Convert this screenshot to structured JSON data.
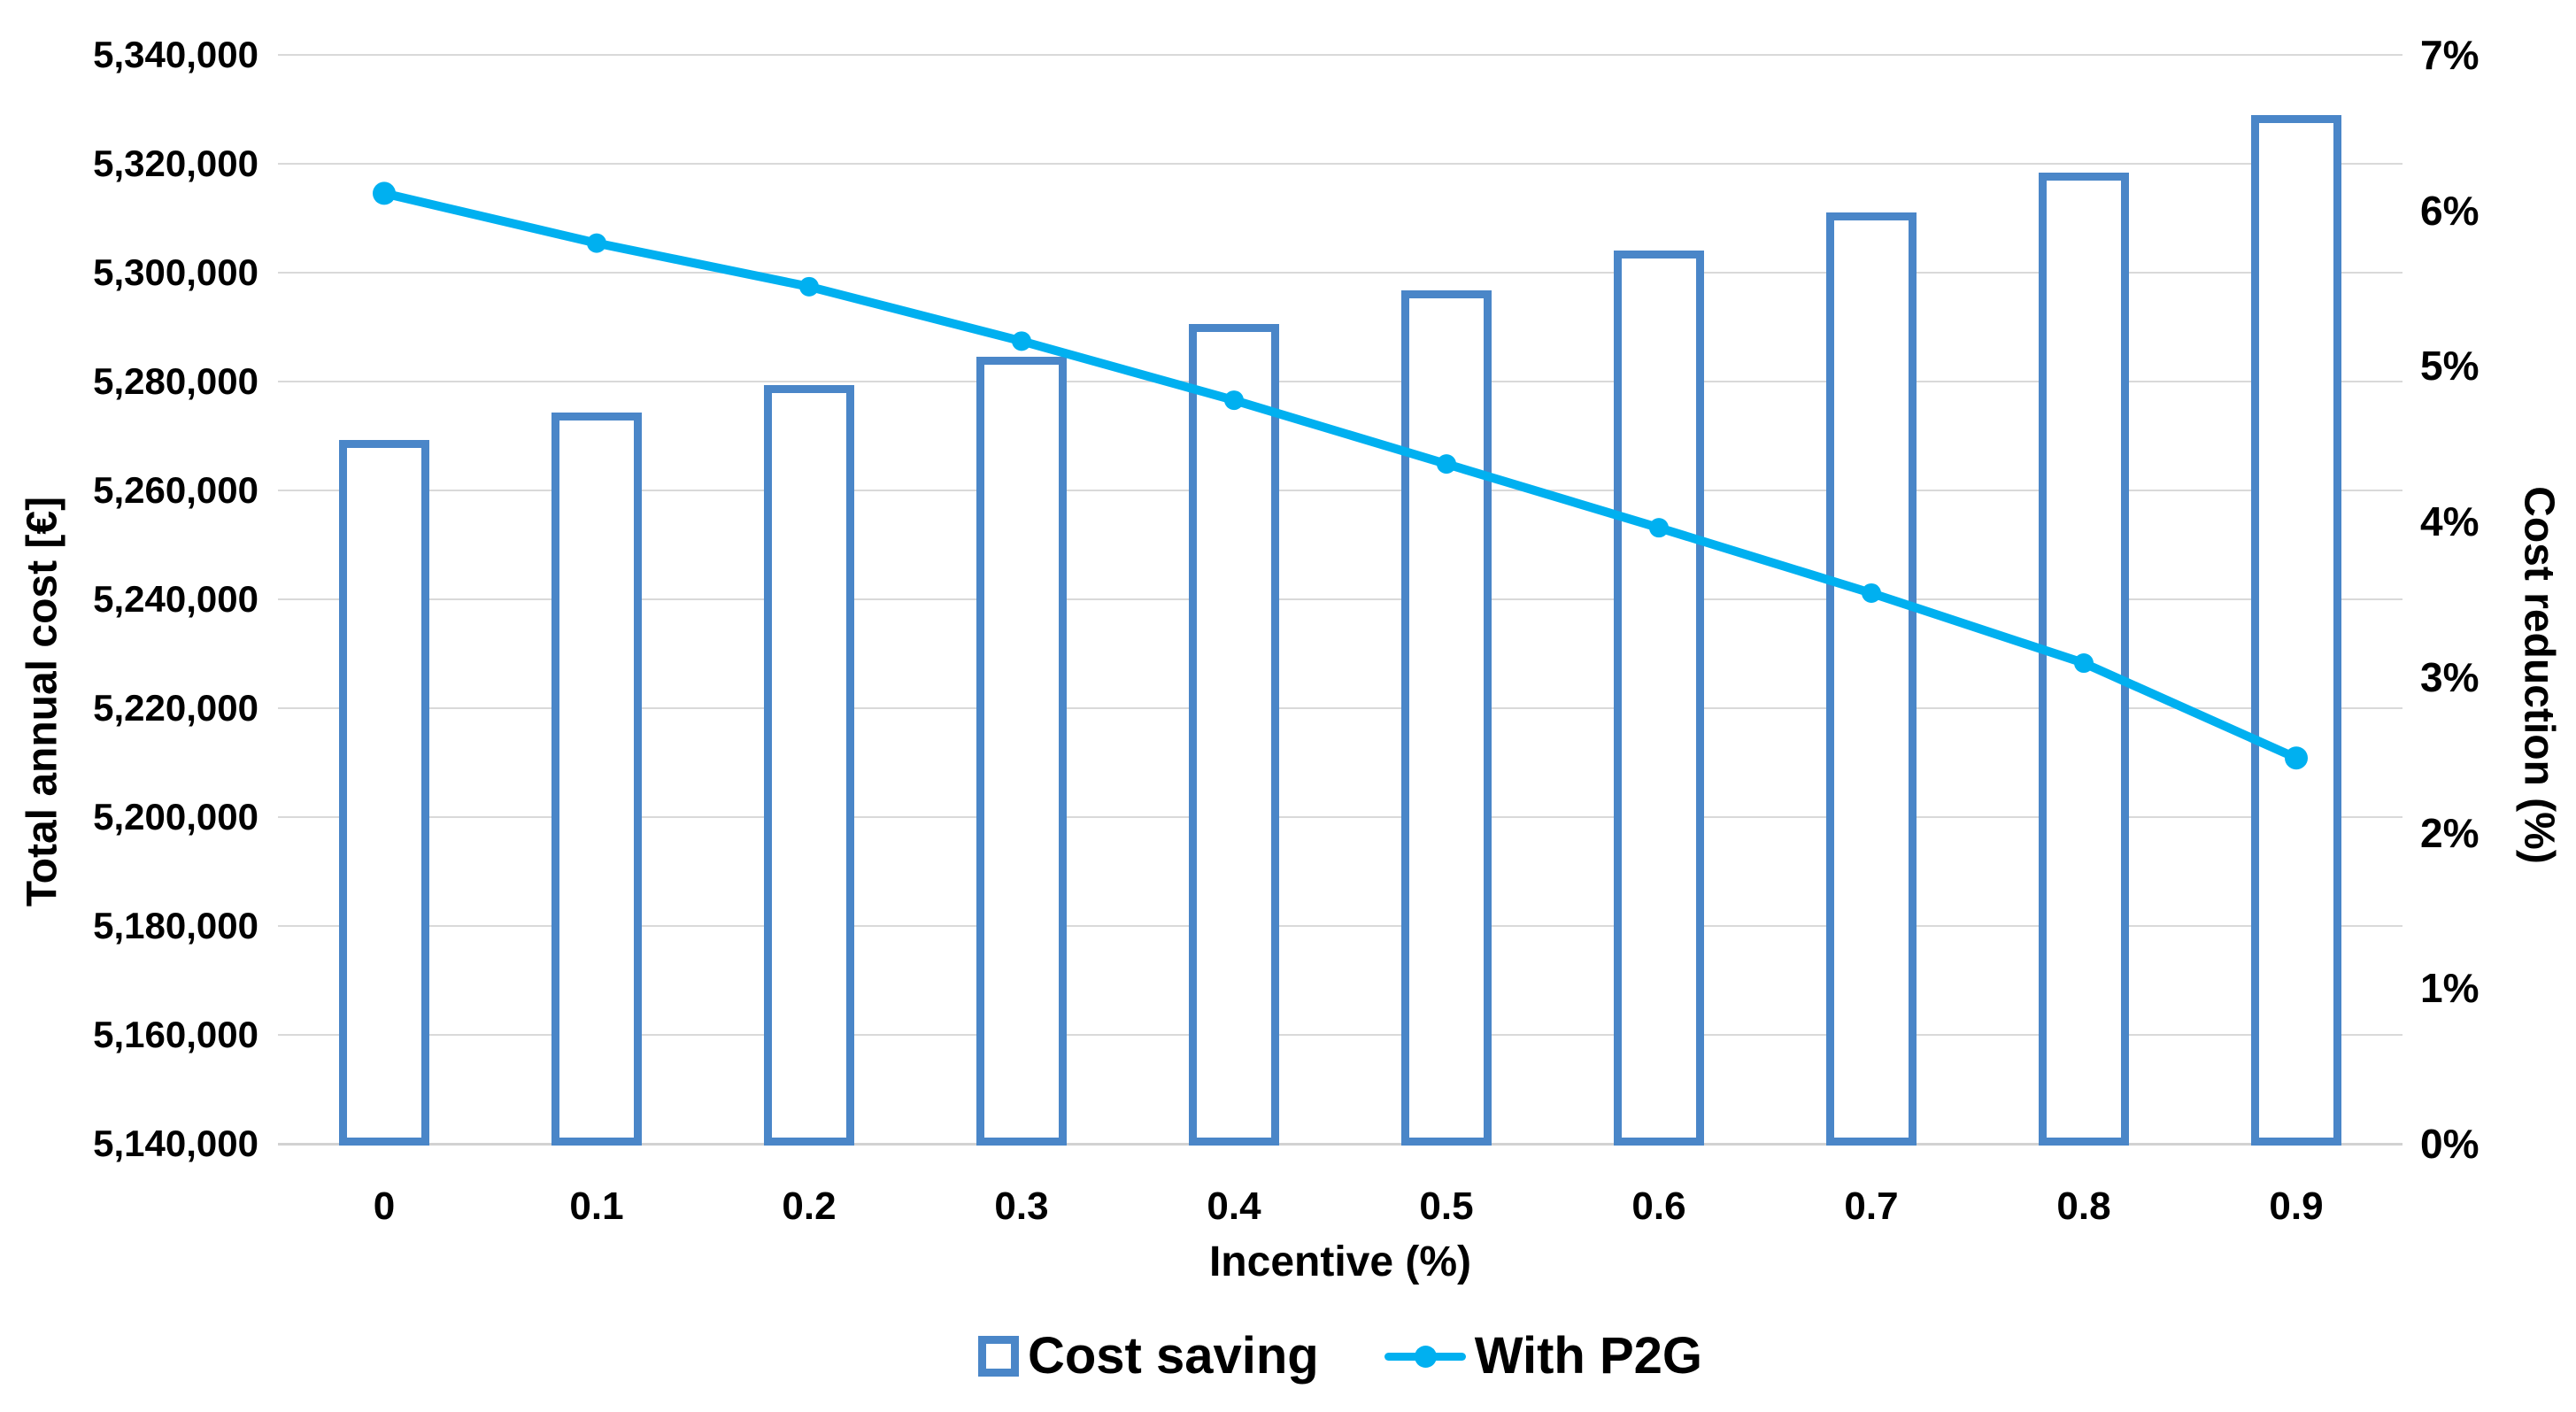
{
  "chart_data": {
    "type": "combo",
    "categories": [
      "0",
      "0.1",
      "0.2",
      "0.3",
      "0.4",
      "0.5",
      "0.6",
      "0.7",
      "0.8",
      "0.9"
    ],
    "x_axis": {
      "label": "Incentive (%)"
    },
    "y_axis_left": {
      "label": "Total annual cost [€]",
      "min": 5140000,
      "max": 5340000,
      "step": 20000,
      "tick_labels": [
        "5,140,000",
        "5,160,000",
        "5,180,000",
        "5,200,000",
        "5,220,000",
        "5,240,000",
        "5,260,000",
        "5,280,000",
        "5,300,000",
        "5,320,000",
        "5,340,000"
      ]
    },
    "y_axis_right": {
      "label": "Cost reduction (%)",
      "min": 0,
      "max": 7,
      "step": 1,
      "tick_labels": [
        "0%",
        "1%",
        "2%",
        "3%",
        "4%",
        "5%",
        "6%",
        "7%"
      ]
    },
    "series": [
      {
        "name": "Cost saving",
        "type": "bar",
        "axis": "left",
        "values": [
          5269300,
          5274300,
          5279400,
          5284600,
          5290500,
          5296800,
          5304000,
          5311000,
          5318400,
          5329000
        ]
      },
      {
        "name": "With P2G",
        "type": "line",
        "axis": "right",
        "values": [
          6.11,
          5.79,
          5.51,
          5.16,
          4.78,
          4.37,
          3.96,
          3.54,
          3.09,
          2.48
        ]
      }
    ],
    "grid": true,
    "legend_position": "bottom"
  },
  "legend": {
    "items": [
      {
        "label": "Cost saving",
        "swatch": "bar-outline"
      },
      {
        "label": "With P2G",
        "swatch": "line-marker"
      }
    ]
  },
  "colors": {
    "bar_border": "#4a86c8",
    "line": "#00b0f0",
    "grid": "#d9d9d9",
    "text": "#000000",
    "background": "#ffffff"
  }
}
